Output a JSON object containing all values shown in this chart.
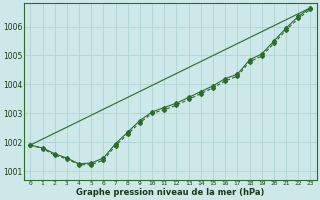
{
  "title": "Graphe pression niveau de la mer (hPa)",
  "bg_color": "#cce8e8",
  "line_color": "#2d6a2d",
  "grid_color": "#aacfcf",
  "x_ticks": [
    0,
    1,
    2,
    3,
    4,
    5,
    6,
    7,
    8,
    9,
    10,
    11,
    12,
    13,
    14,
    15,
    16,
    17,
    18,
    19,
    20,
    21,
    22,
    23
  ],
  "ylim": [
    1000.7,
    1006.8
  ],
  "yticks": [
    1001,
    1002,
    1003,
    1004,
    1005,
    1006
  ],
  "series_linear": {
    "x": [
      0,
      23
    ],
    "y": [
      1001.9,
      1006.65
    ]
  },
  "series_solid": {
    "x": [
      0,
      1,
      2,
      3,
      4,
      5,
      6,
      7,
      8,
      9,
      10,
      11,
      12,
      13,
      14,
      15,
      16,
      17,
      18,
      19,
      20,
      21,
      22,
      23
    ],
    "y": [
      1001.9,
      1001.8,
      1001.6,
      1001.45,
      1001.25,
      1001.28,
      1001.45,
      1001.95,
      1002.35,
      1002.75,
      1003.05,
      1003.2,
      1003.35,
      1003.55,
      1003.75,
      1003.95,
      1004.2,
      1004.35,
      1004.85,
      1005.05,
      1005.5,
      1005.95,
      1006.35,
      1006.65
    ]
  },
  "series_dashed": {
    "x": [
      0,
      1,
      2,
      3,
      4,
      5,
      6,
      7,
      8,
      9,
      10,
      11,
      12,
      13,
      14,
      15,
      16,
      17,
      18,
      19,
      20,
      21,
      22,
      23
    ],
    "y": [
      1001.9,
      1001.78,
      1001.55,
      1001.42,
      1001.22,
      1001.22,
      1001.38,
      1001.88,
      1002.28,
      1002.68,
      1003.0,
      1003.12,
      1003.28,
      1003.48,
      1003.68,
      1003.88,
      1004.12,
      1004.28,
      1004.78,
      1004.98,
      1005.42,
      1005.88,
      1006.28,
      1006.6
    ]
  }
}
